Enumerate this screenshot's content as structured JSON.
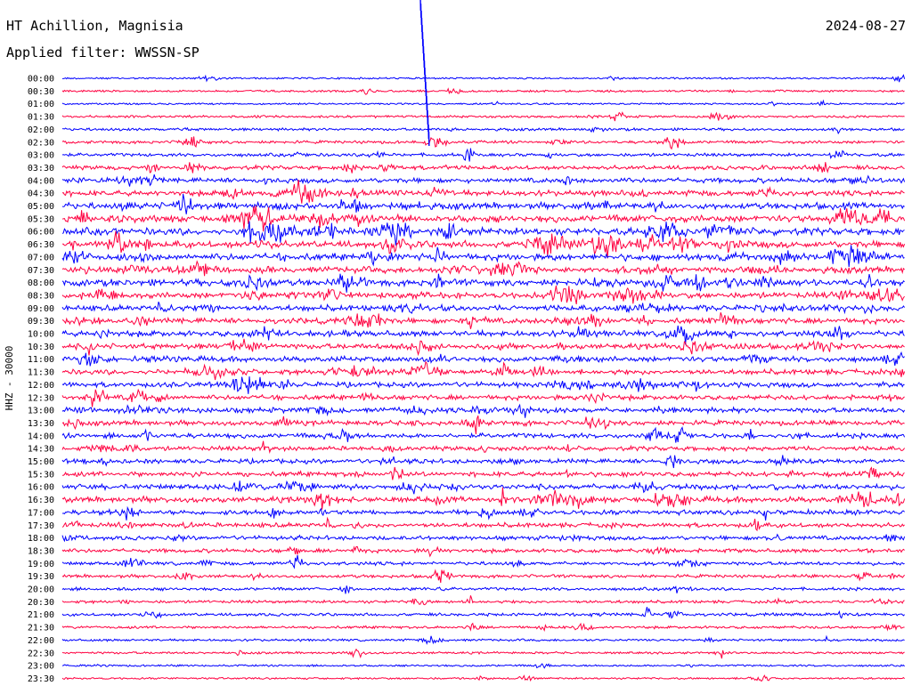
{
  "header": {
    "station": "HT Achillion, Magnisia",
    "filter": "Applied filter: WWSSN-SP",
    "date": "2024-08-27"
  },
  "axis": {
    "channel_label": "HHZ - 30000"
  },
  "colors": {
    "even_trace": "#0000ff",
    "odd_trace": "#ff0040",
    "text": "#000000",
    "background": "#ffffff"
  },
  "chart_data": {
    "type": "line",
    "title": "HT Achillion, Magnisia",
    "subtitle": "Applied filter: WWSSN-SP",
    "ylabel": "HHZ - 30000",
    "xlabel": "",
    "grid": false,
    "row_labels": [
      "00:00",
      "00:30",
      "01:00",
      "01:30",
      "02:00",
      "02:30",
      "03:00",
      "03:30",
      "04:00",
      "04:30",
      "05:00",
      "05:30",
      "06:00",
      "06:30",
      "07:00",
      "07:30",
      "08:00",
      "08:30",
      "09:00",
      "09:30",
      "10:00",
      "10:30",
      "11:00",
      "11:30",
      "12:00",
      "12:30",
      "13:00",
      "13:30",
      "14:00",
      "14:30",
      "15:00",
      "15:30",
      "16:00",
      "16:30",
      "17:00",
      "17:30",
      "18:00",
      "18:30",
      "19:00",
      "19:30",
      "20:00",
      "20:30",
      "21:00",
      "21:30",
      "22:00",
      "22:30",
      "23:00",
      "23:30"
    ],
    "trace_colors": [
      "#0000ff",
      "#ff0040"
    ],
    "note_activity": [
      0.1,
      0.15,
      0.1,
      0.2,
      0.25,
      0.3,
      0.35,
      0.5,
      0.6,
      0.7,
      0.85,
      0.95,
      0.95,
      0.9,
      0.9,
      0.85,
      0.9,
      0.8,
      0.75,
      0.7,
      0.75,
      0.7,
      0.7,
      0.65,
      0.65,
      0.6,
      0.65,
      0.6,
      0.6,
      0.55,
      0.55,
      0.6,
      0.7,
      0.75,
      0.6,
      0.55,
      0.5,
      0.45,
      0.4,
      0.35,
      0.3,
      0.3,
      0.3,
      0.25,
      0.2,
      0.18,
      0.12,
      0.12
    ]
  }
}
